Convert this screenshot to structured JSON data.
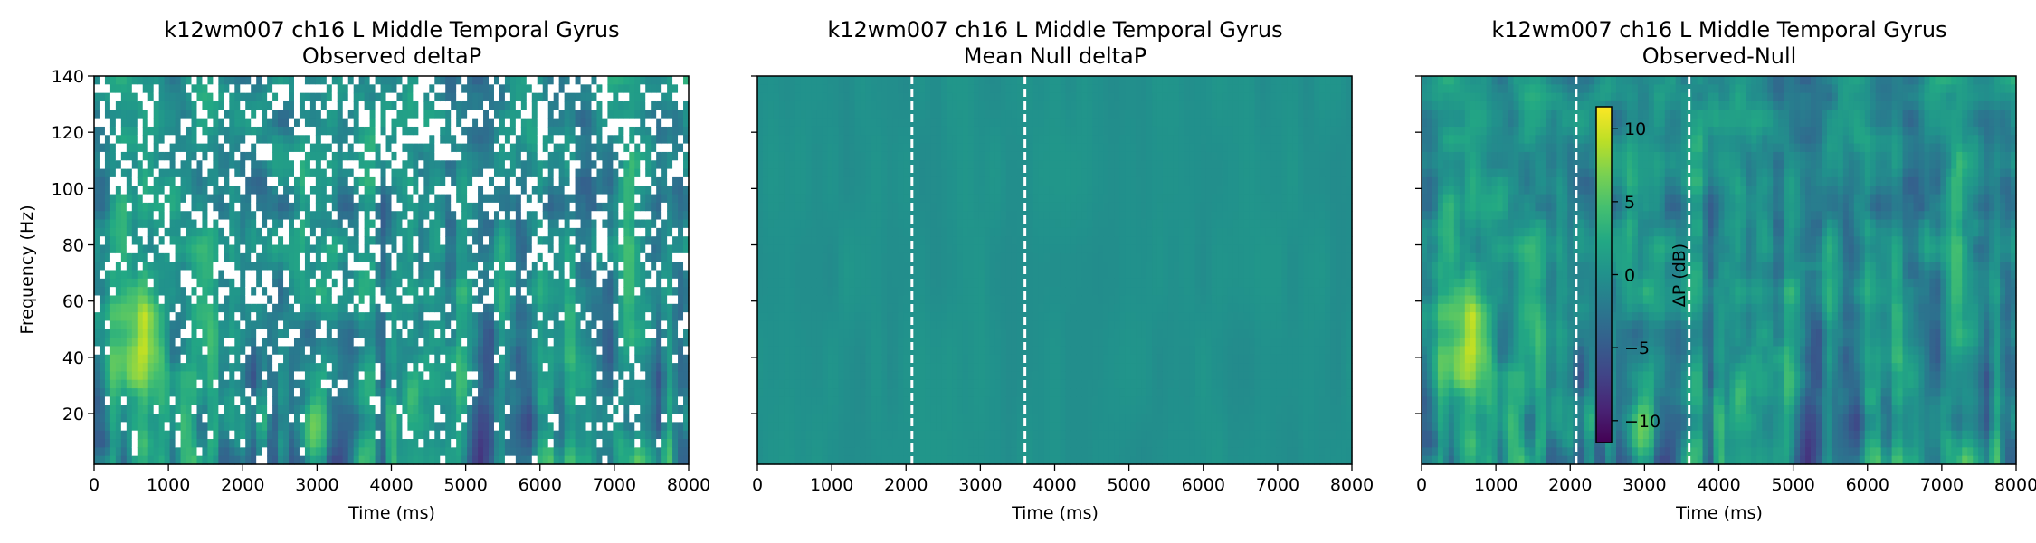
{
  "chart_data": [
    {
      "type": "heatmap",
      "title": "k12wm007 ch16 L Middle Temporal Gyrus",
      "subtitle": "Observed deltaP",
      "xlabel": "Time (ms)",
      "ylabel": "Frequency (Hz)",
      "xlim": [
        0,
        8000
      ],
      "ylim": [
        2,
        140
      ],
      "xticks": [
        "0",
        "1000",
        "2000",
        "3000",
        "4000",
        "5000",
        "6000",
        "7000",
        "8000"
      ],
      "yticks": [
        "20",
        "40",
        "60",
        "80",
        "100",
        "120",
        "140"
      ],
      "vlines_ms": [],
      "masked_nonsignificant": true,
      "colormap": "viridis"
    },
    {
      "type": "heatmap",
      "title": "k12wm007 ch16 L Middle Temporal Gyrus",
      "subtitle": "Mean Null deltaP",
      "xlabel": "Time (ms)",
      "ylabel": "",
      "xlim": [
        0,
        8000
      ],
      "ylim": [
        2,
        140
      ],
      "xticks": [
        "0",
        "1000",
        "2000",
        "3000",
        "4000",
        "5000",
        "6000",
        "7000",
        "8000"
      ],
      "yticks": [
        "20",
        "40",
        "60",
        "80",
        "100",
        "120",
        "140"
      ],
      "vlines_ms": [
        2080,
        3600
      ],
      "masked_nonsignificant": false,
      "colormap": "viridis"
    },
    {
      "type": "heatmap",
      "title": "k12wm007 ch16 L Middle Temporal Gyrus",
      "subtitle": "Observed-Null",
      "xlabel": "Time (ms)",
      "ylabel": "",
      "xlim": [
        0,
        8000
      ],
      "ylim": [
        2,
        140
      ],
      "xticks": [
        "0",
        "1000",
        "2000",
        "3000",
        "4000",
        "5000",
        "6000",
        "7000",
        "8000"
      ],
      "yticks": [
        "20",
        "40",
        "60",
        "80",
        "100",
        "120",
        "140"
      ],
      "vlines_ms": [
        2080,
        3600
      ],
      "masked_nonsignificant": false,
      "colormap": "viridis",
      "colorbar": {
        "label": "ΔP (dB)",
        "range": [
          -11.5,
          11.5
        ],
        "ticks": [
          "10",
          "5",
          "0",
          "−5",
          "−10"
        ],
        "tick_values": [
          10,
          5,
          0,
          -5,
          -10
        ]
      }
    }
  ]
}
